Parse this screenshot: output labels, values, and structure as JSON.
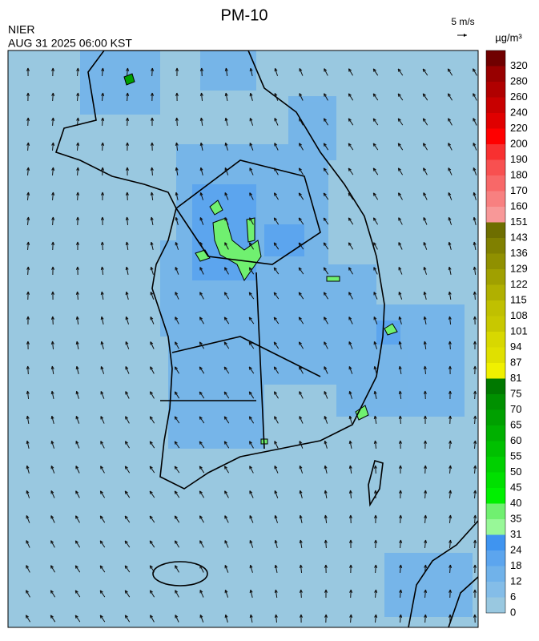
{
  "header": {
    "title": "PM-10",
    "source": "NIER",
    "datetime": "AUG 31 2025 06:00 KST",
    "wind_scale": "5 m/s"
  },
  "colorbar": {
    "unit": "µg/m³",
    "labels": [
      0,
      6,
      12,
      18,
      24,
      31,
      35,
      40,
      45,
      50,
      55,
      60,
      65,
      70,
      75,
      81,
      87,
      94,
      101,
      108,
      115,
      122,
      129,
      136,
      143,
      151,
      160,
      170,
      180,
      190,
      200,
      220,
      240,
      260,
      280,
      320
    ],
    "colors": [
      "#99c8e0",
      "#84bde8",
      "#70b2ea",
      "#5ca5ee",
      "#3f94f0",
      "#98f898",
      "#70f070",
      "#00f000",
      "#00e000",
      "#00d000",
      "#00c000",
      "#00b000",
      "#00a000",
      "#009000",
      "#007800",
      "#f0f000",
      "#e0e000",
      "#d8d800",
      "#c8c800",
      "#c0c000",
      "#b0b000",
      "#a0a000",
      "#909000",
      "#808000",
      "#6e6e00",
      "#f89898",
      "#f88080",
      "#f86868",
      "#f85050",
      "#f83030",
      "#ff0000",
      "#e00000",
      "#c80000",
      "#b00000",
      "#980000",
      "#700000"
    ]
  }
}
